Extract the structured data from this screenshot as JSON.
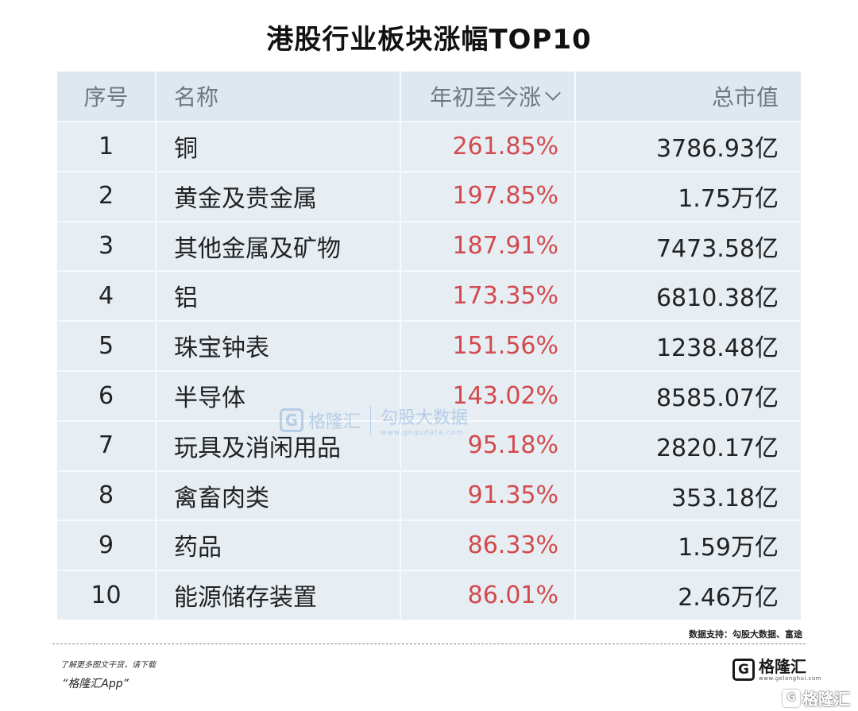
{
  "title": "港股行业板块涨幅TOP10",
  "table": {
    "headers": [
      "序号",
      "名称",
      "年初至今涨",
      "总市值"
    ],
    "rows": [
      {
        "rank": "1",
        "name": "铜",
        "change": "261.85%",
        "cap": "3786.93亿"
      },
      {
        "rank": "2",
        "name": "黄金及贵金属",
        "change": "197.85%",
        "cap": "1.75万亿"
      },
      {
        "rank": "3",
        "name": "其他金属及矿物",
        "change": "187.91%",
        "cap": "7473.58亿"
      },
      {
        "rank": "4",
        "name": "铝",
        "change": "173.35%",
        "cap": "6810.38亿"
      },
      {
        "rank": "5",
        "name": "珠宝钟表",
        "change": "151.56%",
        "cap": "1238.48亿"
      },
      {
        "rank": "6",
        "name": "半导体",
        "change": "143.02%",
        "cap": "8585.07亿"
      },
      {
        "rank": "7",
        "name": "玩具及消闲用品",
        "change": "95.18%",
        "cap": "2820.17亿"
      },
      {
        "rank": "8",
        "name": "禽畜肉类",
        "change": "91.35%",
        "cap": "353.18亿"
      },
      {
        "rank": "9",
        "name": "药品",
        "change": "86.33%",
        "cap": "1.59万亿"
      },
      {
        "rank": "10",
        "name": "能源储存装置",
        "change": "86.01%",
        "cap": "2.46万亿"
      }
    ]
  },
  "watermark": {
    "logo_letter": "G",
    "brand": "格隆汇",
    "sub_brand": "勾股大数据",
    "url": "www.gogudata.com"
  },
  "source": "数据支持：勾股大数据、富途",
  "footer": {
    "line1": "了解更多图文干货，请下载",
    "line2": "“格隆汇App”",
    "brand_name": "格隆汇",
    "brand_url": "www.gelonghui.com",
    "logo_letter": "G"
  },
  "corner_brand": "格隆汇",
  "colors": {
    "positive": "#d24a4d",
    "table_bg": "#e6eef4",
    "header_text": "#6f7780"
  },
  "icons": {
    "sort": "chevron-down-icon"
  }
}
